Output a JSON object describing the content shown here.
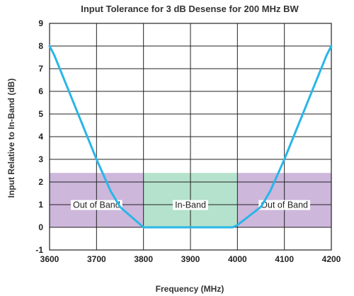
{
  "chart_data": {
    "type": "line",
    "title": "Input Tolerance for 3 dB Desense for 200 MHz BW",
    "xlabel": "Frequency (MHz)",
    "ylabel": "Input Relative to In-Band (dB)",
    "xlim": [
      3600,
      4200
    ],
    "ylim": [
      -1,
      9
    ],
    "xticks": [
      3600,
      3700,
      3800,
      3900,
      4000,
      4100,
      4200
    ],
    "yticks": [
      -1,
      0,
      1,
      2,
      3,
      4,
      5,
      6,
      7,
      8,
      9
    ],
    "grid": true,
    "regions": [
      {
        "name": "Out of Band",
        "x": [
          3600,
          3800
        ],
        "y": [
          0,
          2.4
        ],
        "color": "#cdb7db",
        "label_y": 1
      },
      {
        "name": "In-Band",
        "x": [
          3800,
          4000
        ],
        "y": [
          0,
          2.4
        ],
        "color": "#b5e2cc",
        "label_y": 1
      },
      {
        "name": "Out of Band",
        "x": [
          4000,
          4200
        ],
        "y": [
          0,
          2.4
        ],
        "color": "#cdb7db",
        "label_y": 1
      }
    ],
    "series": [
      {
        "color": "#29b6e8",
        "x": [
          3600,
          3610,
          3700,
          3730,
          3750,
          3800,
          3990,
          4000,
          4050,
          4070,
          4100,
          4190,
          4200
        ],
        "y": [
          8,
          7.6,
          3,
          1.6,
          0.9,
          0,
          0,
          0.1,
          0.9,
          1.6,
          3,
          7.6,
          8
        ]
      }
    ]
  }
}
